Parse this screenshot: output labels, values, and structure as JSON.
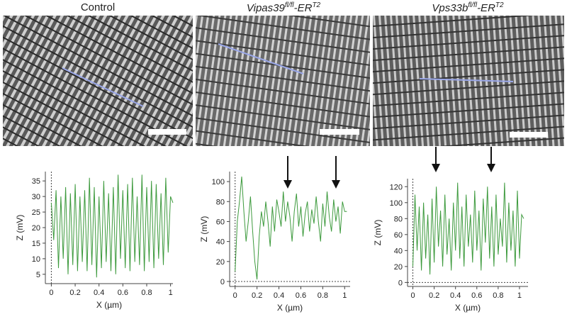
{
  "panels": [
    {
      "title_main": "Control",
      "title_sup": "",
      "italic": false
    },
    {
      "title_main": "Vipas39",
      "title_sup": "fl/fl",
      "title_rest": "-ER",
      "title_sup2": "T2",
      "italic": true
    },
    {
      "title_main": "Vps33b",
      "title_sup": "fl/fl",
      "title_rest": "-ER",
      "title_sup2": "T2",
      "italic": true
    }
  ],
  "colors": {
    "trace": "#3d9a3d",
    "profile_line": "#9aa7e8",
    "scale_bar": "#ffffff"
  },
  "chart_data": [
    {
      "type": "line",
      "xlabel": "X (µm)",
      "ylabel": "Z (mV)",
      "xlim": [
        -0.05,
        1.02
      ],
      "ylim": [
        2,
        38
      ],
      "xticks": [
        0,
        0.2,
        0.4,
        0.6,
        0.8,
        1
      ],
      "xtick_labels": [
        "0",
        "0.2",
        "0.4",
        "0.6",
        "0.8",
        "1"
      ],
      "yticks": [
        5,
        10,
        15,
        20,
        25,
        30,
        35
      ],
      "ytick_labels": [
        "5",
        "10",
        "15",
        "20",
        "25",
        "30",
        "35"
      ],
      "zero_line": false,
      "x": [
        0.0,
        0.02,
        0.04,
        0.06,
        0.08,
        0.1,
        0.12,
        0.14,
        0.16,
        0.18,
        0.2,
        0.22,
        0.24,
        0.26,
        0.28,
        0.3,
        0.32,
        0.34,
        0.36,
        0.38,
        0.4,
        0.42,
        0.44,
        0.46,
        0.48,
        0.5,
        0.52,
        0.54,
        0.56,
        0.58,
        0.6,
        0.62,
        0.64,
        0.66,
        0.68,
        0.7,
        0.72,
        0.74,
        0.76,
        0.78,
        0.8,
        0.82,
        0.84,
        0.86,
        0.88,
        0.9,
        0.92,
        0.94,
        0.96,
        0.98,
        1.0,
        1.02
      ],
      "y": [
        28,
        16,
        32,
        7,
        30,
        10,
        33,
        5,
        31,
        8,
        34,
        6,
        30,
        9,
        32,
        6,
        36,
        8,
        33,
        4,
        30,
        7,
        35,
        9,
        31,
        6,
        33,
        5,
        37,
        10,
        32,
        7,
        34,
        6,
        36,
        9,
        30,
        8,
        37,
        6,
        33,
        9,
        35,
        7,
        34,
        10,
        31,
        8,
        36,
        12,
        30,
        28
      ]
    },
    {
      "type": "line",
      "xlabel": "X (µm)",
      "ylabel": "Z (mV)",
      "xlim": [
        -0.05,
        1.05
      ],
      "ylim": [
        -5,
        110
      ],
      "xticks": [
        0,
        0.2,
        0.4,
        0.6,
        0.8,
        1
      ],
      "xtick_labels": [
        "0",
        "0.2",
        "0.4",
        "0.6",
        "0.8",
        "1"
      ],
      "yticks": [
        0,
        20,
        40,
        60,
        80,
        100
      ],
      "ytick_labels": [
        "0",
        "20",
        "40",
        "60",
        "80",
        "100"
      ],
      "zero_line": true,
      "x": [
        0.0,
        0.02,
        0.04,
        0.06,
        0.08,
        0.1,
        0.12,
        0.14,
        0.16,
        0.18,
        0.2,
        0.22,
        0.24,
        0.26,
        0.28,
        0.3,
        0.32,
        0.34,
        0.36,
        0.38,
        0.4,
        0.42,
        0.44,
        0.46,
        0.48,
        0.5,
        0.52,
        0.54,
        0.56,
        0.58,
        0.6,
        0.62,
        0.64,
        0.66,
        0.68,
        0.7,
        0.72,
        0.74,
        0.76,
        0.78,
        0.8,
        0.82,
        0.84,
        0.86,
        0.88,
        0.9,
        0.92,
        0.94,
        0.96,
        0.98,
        1.0,
        1.02
      ],
      "y": [
        10,
        60,
        80,
        105,
        70,
        40,
        60,
        85,
        50,
        20,
        2,
        45,
        70,
        55,
        80,
        60,
        35,
        75,
        50,
        82,
        70,
        55,
        90,
        60,
        80,
        65,
        40,
        70,
        88,
        55,
        75,
        45,
        68,
        80,
        50,
        72,
        58,
        85,
        60,
        40,
        78,
        55,
        90,
        65,
        50,
        82,
        60,
        75,
        48,
        80,
        70,
        70
      ]
    },
    {
      "type": "line",
      "xlabel": "X (µm)",
      "ylabel": "Z (mV)",
      "xlim": [
        -0.05,
        1.08
      ],
      "ylim": [
        -5,
        130
      ],
      "xticks": [
        0,
        0.2,
        0.4,
        0.6,
        0.8,
        1
      ],
      "xtick_labels": [
        "0",
        "0.2",
        "0.4",
        "0.6",
        "0.8",
        "1"
      ],
      "yticks": [
        0,
        20,
        40,
        60,
        80,
        100,
        120
      ],
      "ytick_labels": [
        "0",
        "20",
        "40",
        "60",
        "80",
        "100",
        "120"
      ],
      "zero_line": true,
      "x": [
        0.0,
        0.02,
        0.04,
        0.06,
        0.08,
        0.1,
        0.12,
        0.14,
        0.16,
        0.18,
        0.2,
        0.22,
        0.24,
        0.26,
        0.28,
        0.3,
        0.32,
        0.34,
        0.36,
        0.38,
        0.4,
        0.42,
        0.44,
        0.46,
        0.48,
        0.5,
        0.52,
        0.54,
        0.56,
        0.58,
        0.6,
        0.62,
        0.64,
        0.66,
        0.68,
        0.7,
        0.72,
        0.74,
        0.76,
        0.78,
        0.8,
        0.82,
        0.84,
        0.86,
        0.88,
        0.9,
        0.92,
        0.94,
        0.96,
        0.98,
        1.0,
        1.02,
        1.04
      ],
      "y": [
        20,
        110,
        40,
        95,
        15,
        100,
        30,
        85,
        10,
        105,
        25,
        120,
        45,
        90,
        20,
        110,
        35,
        80,
        15,
        100,
        40,
        125,
        30,
        95,
        20,
        110,
        45,
        85,
        25,
        115,
        40,
        90,
        15,
        105,
        50,
        120,
        30,
        95,
        20,
        110,
        35,
        80,
        45,
        125,
        25,
        100,
        40,
        90,
        20,
        115,
        30,
        85,
        80
      ]
    }
  ]
}
